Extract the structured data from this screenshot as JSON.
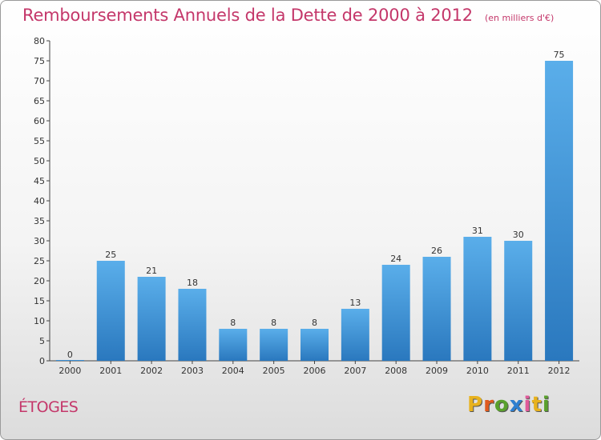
{
  "chart_data": {
    "type": "bar",
    "title": "Remboursements Annuels de la Dette de 2000 à 2012",
    "subtitle": "(en milliers d'€)",
    "categories": [
      "2000",
      "2001",
      "2002",
      "2003",
      "2004",
      "2005",
      "2006",
      "2007",
      "2008",
      "2009",
      "2010",
      "2011",
      "2012"
    ],
    "values": [
      0,
      25,
      21,
      18,
      8,
      8,
      8,
      13,
      24,
      26,
      31,
      30,
      75
    ],
    "ylim": [
      0,
      80
    ],
    "yticks": [
      0,
      5,
      10,
      15,
      20,
      25,
      30,
      35,
      40,
      45,
      50,
      55,
      60,
      65,
      70,
      75,
      80
    ],
    "grid": false,
    "bar_color": "#3a8fd6"
  },
  "commune": "ÉTOGES",
  "logo": {
    "letters": [
      "P",
      "r",
      "o",
      "x",
      "i",
      "t",
      "i"
    ],
    "colors": [
      "#e8b21e",
      "#e05a1e",
      "#5aa02c",
      "#2e7fd0",
      "#e05a9a",
      "#e8b21e",
      "#5aa02c"
    ]
  }
}
